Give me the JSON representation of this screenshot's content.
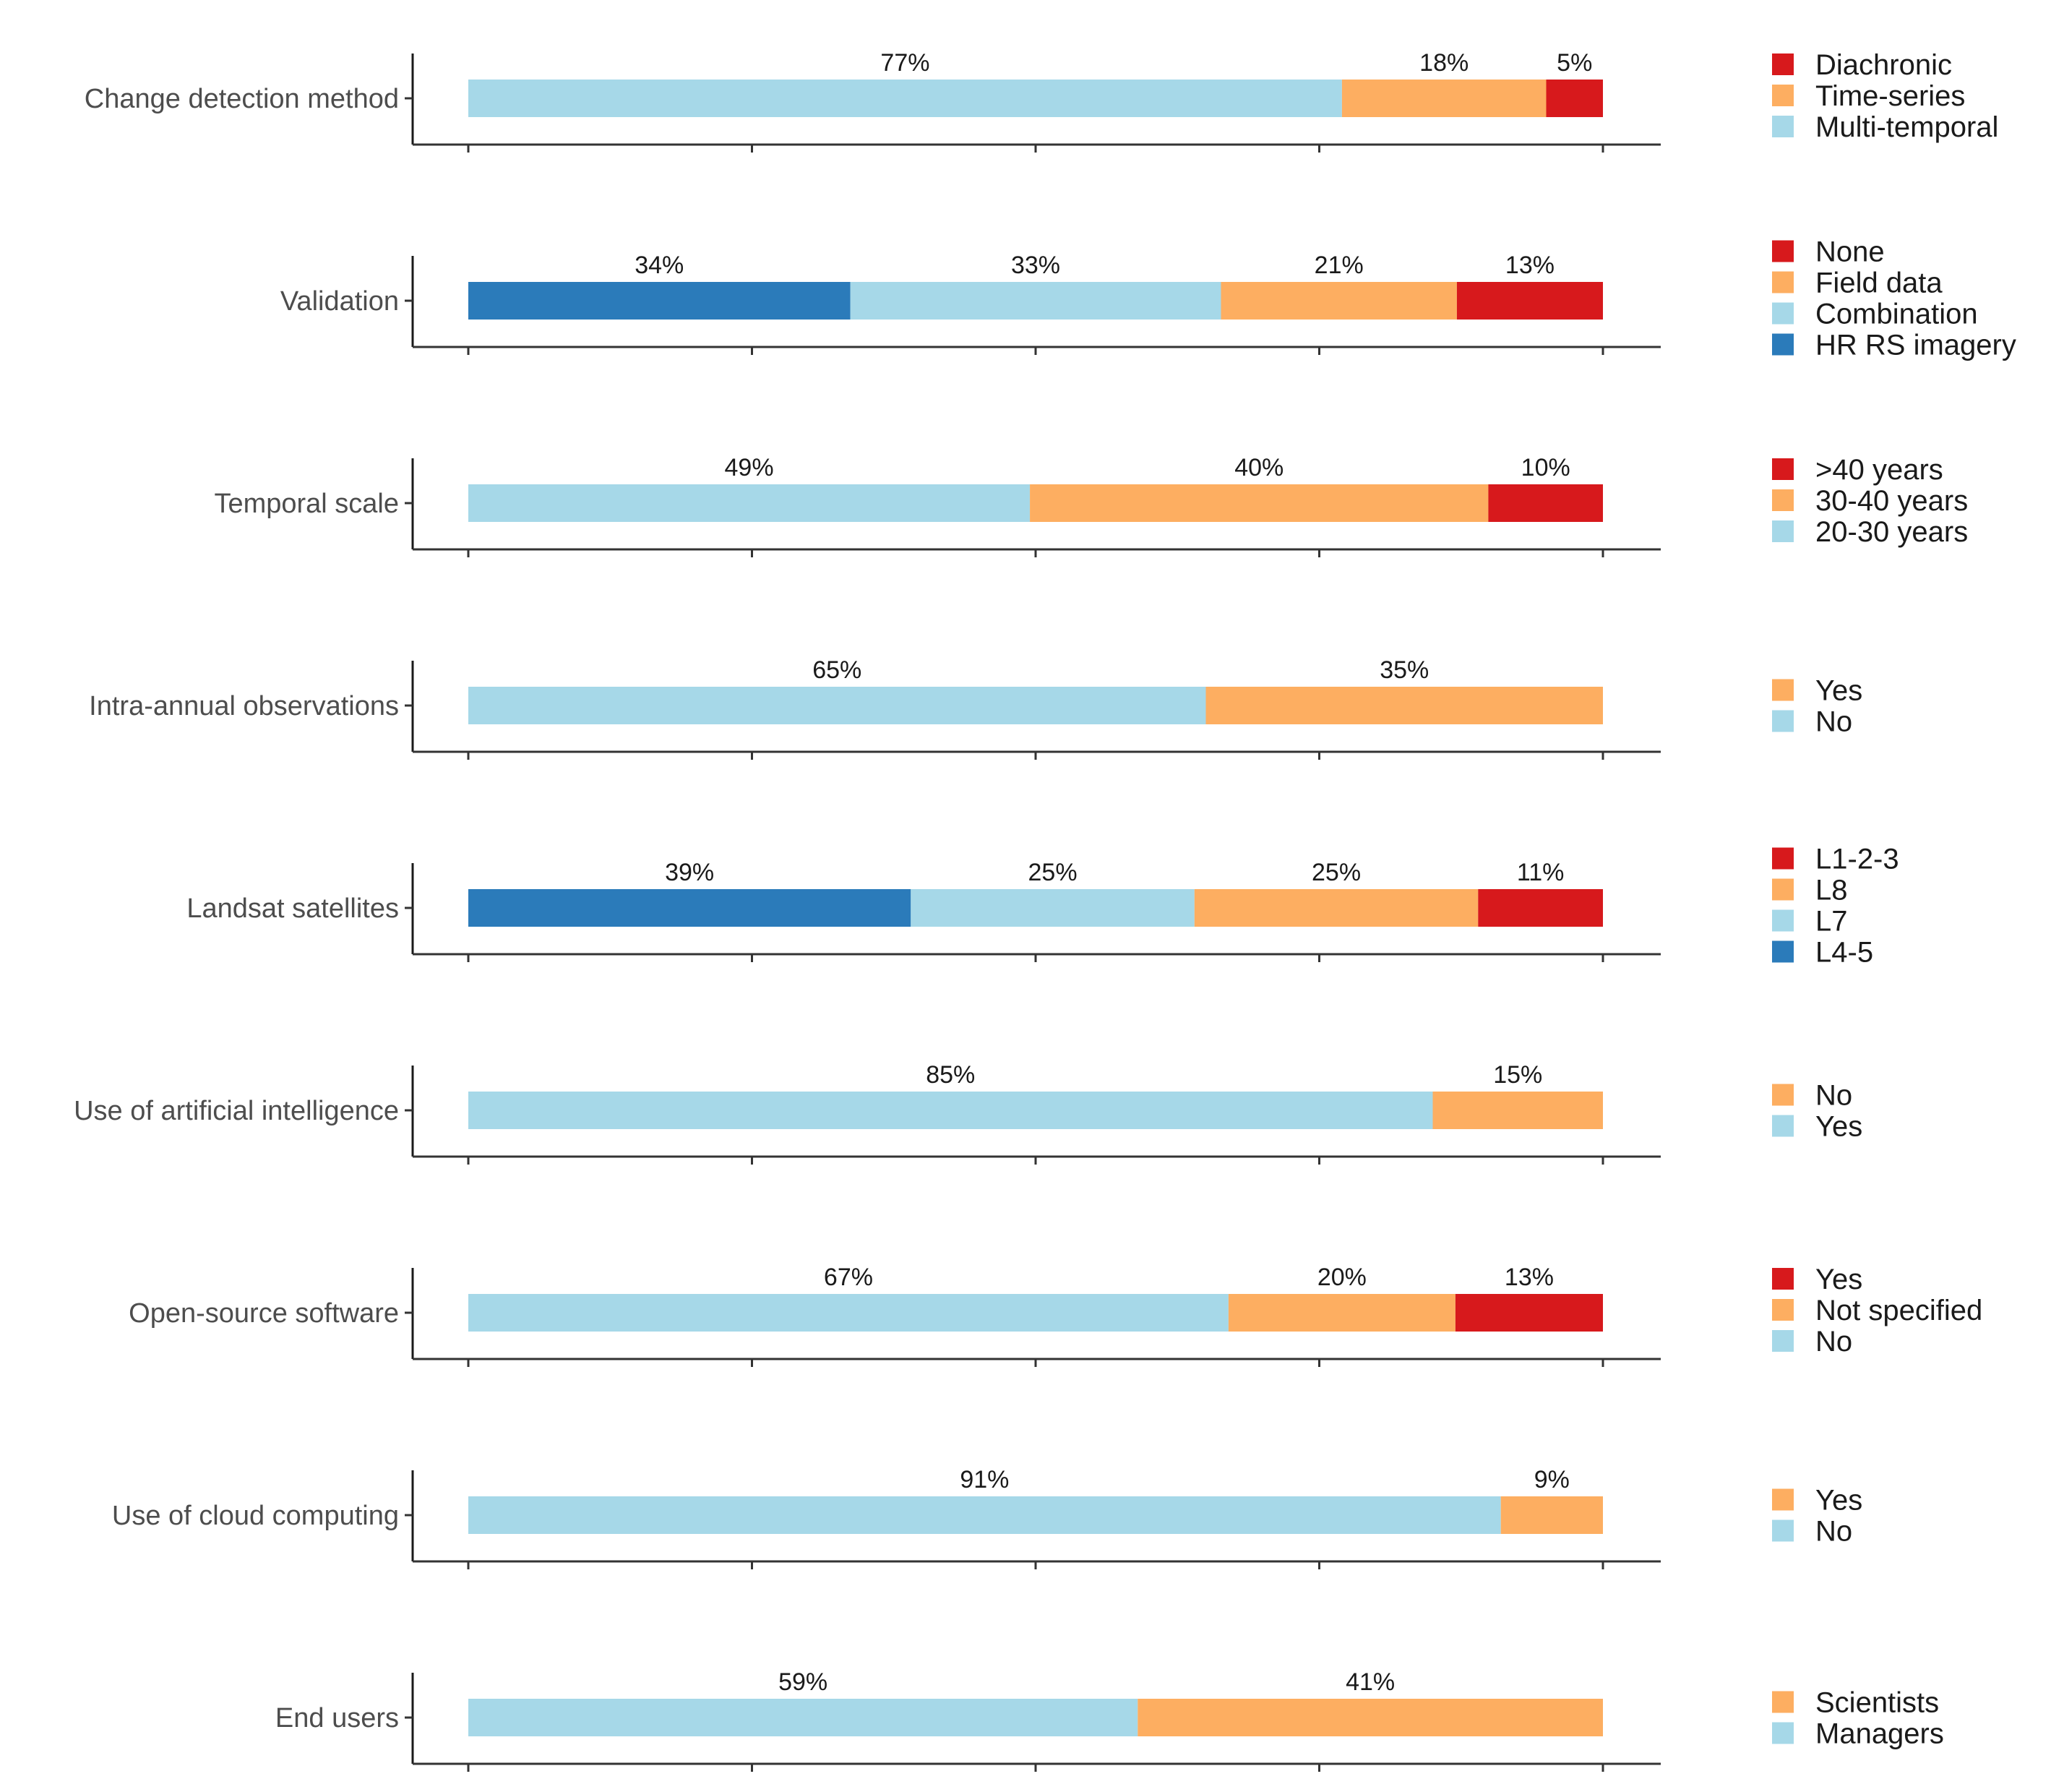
{
  "chart_data": {
    "type": "bar",
    "orientation": "horizontal-stacked",
    "x_range": [
      0,
      100
    ],
    "colors": {
      "dark_blue": "#2b7bba",
      "light_blue": "#a6d8e8",
      "orange": "#fdae61",
      "red": "#d7191c"
    },
    "panels": [
      {
        "category": "Change detection method",
        "segments": [
          {
            "name": "Multi-temporal",
            "value": 77,
            "label": "77%",
            "color": "light_blue"
          },
          {
            "name": "Time-series",
            "value": 18,
            "label": "18%",
            "color": "orange"
          },
          {
            "name": "Diachronic",
            "value": 5,
            "label": "5%",
            "color": "red"
          }
        ],
        "legend": [
          {
            "name": "Diachronic",
            "color": "red"
          },
          {
            "name": "Time-series",
            "color": "orange"
          },
          {
            "name": "Multi-temporal",
            "color": "light_blue"
          }
        ]
      },
      {
        "category": "Validation",
        "segments": [
          {
            "name": "HR RS imagery",
            "value": 34,
            "label": "34%",
            "color": "dark_blue"
          },
          {
            "name": "Combination",
            "value": 33,
            "label": "33%",
            "color": "light_blue"
          },
          {
            "name": "Field data",
            "value": 21,
            "label": "21%",
            "color": "orange"
          },
          {
            "name": "None",
            "value": 13,
            "label": "13%",
            "color": "red"
          }
        ],
        "legend": [
          {
            "name": "None",
            "color": "red"
          },
          {
            "name": "Field data",
            "color": "orange"
          },
          {
            "name": "Combination",
            "color": "light_blue"
          },
          {
            "name": "HR RS imagery",
            "color": "dark_blue"
          }
        ]
      },
      {
        "category": "Temporal scale",
        "segments": [
          {
            "name": "20-30 years",
            "value": 49,
            "label": "49%",
            "color": "light_blue"
          },
          {
            "name": "30-40 years",
            "value": 40,
            "label": "40%",
            "color": "orange"
          },
          {
            "name": ">40 years",
            "value": 10,
            "label": "10%",
            "color": "red"
          }
        ],
        "legend": [
          {
            "name": ">40 years",
            "color": "red"
          },
          {
            "name": "30-40 years",
            "color": "orange"
          },
          {
            "name": "20-30 years",
            "color": "light_blue"
          }
        ]
      },
      {
        "category": "Intra-annual observations",
        "segments": [
          {
            "name": "No",
            "value": 65,
            "label": "65%",
            "color": "light_blue"
          },
          {
            "name": "Yes",
            "value": 35,
            "label": "35%",
            "color": "orange"
          }
        ],
        "legend": [
          {
            "name": "Yes",
            "color": "orange"
          },
          {
            "name": "No",
            "color": "light_blue"
          }
        ]
      },
      {
        "category": "Landsat satellites",
        "segments": [
          {
            "name": "L4-5",
            "value": 39,
            "label": "39%",
            "color": "dark_blue"
          },
          {
            "name": "L7",
            "value": 25,
            "label": "25%",
            "color": "light_blue"
          },
          {
            "name": "L8",
            "value": 25,
            "label": "25%",
            "color": "orange"
          },
          {
            "name": "L1-2-3",
            "value": 11,
            "label": "11%",
            "color": "red"
          }
        ],
        "legend": [
          {
            "name": "L1-2-3",
            "color": "red"
          },
          {
            "name": "L8",
            "color": "orange"
          },
          {
            "name": "L7",
            "color": "light_blue"
          },
          {
            "name": "L4-5",
            "color": "dark_blue"
          }
        ]
      },
      {
        "category": "Use of artificial intelligence",
        "segments": [
          {
            "name": "Yes",
            "value": 85,
            "label": "85%",
            "color": "light_blue"
          },
          {
            "name": "No",
            "value": 15,
            "label": "15%",
            "color": "orange"
          }
        ],
        "legend": [
          {
            "name": "No",
            "color": "orange"
          },
          {
            "name": "Yes",
            "color": "light_blue"
          }
        ]
      },
      {
        "category": "Open-source software",
        "segments": [
          {
            "name": "No",
            "value": 67,
            "label": "67%",
            "color": "light_blue"
          },
          {
            "name": "Not specified",
            "value": 20,
            "label": "20%",
            "color": "orange"
          },
          {
            "name": "Yes",
            "value": 13,
            "label": "13%",
            "color": "red"
          }
        ],
        "legend": [
          {
            "name": "Yes",
            "color": "red"
          },
          {
            "name": "Not specified",
            "color": "orange"
          },
          {
            "name": "No",
            "color": "light_blue"
          }
        ]
      },
      {
        "category": "Use of cloud computing",
        "segments": [
          {
            "name": "No",
            "value": 91,
            "label": "91%",
            "color": "light_blue"
          },
          {
            "name": "Yes",
            "value": 9,
            "label": "9%",
            "color": "orange"
          }
        ],
        "legend": [
          {
            "name": "Yes",
            "color": "orange"
          },
          {
            "name": "No",
            "color": "light_blue"
          }
        ]
      },
      {
        "category": "End users",
        "segments": [
          {
            "name": "Managers",
            "value": 59,
            "label": "59%",
            "color": "light_blue"
          },
          {
            "name": "Scientists",
            "value": 41,
            "label": "41%",
            "color": "orange"
          }
        ],
        "legend": [
          {
            "name": "Scientists",
            "color": "orange"
          },
          {
            "name": "Managers",
            "color": "light_blue"
          }
        ]
      }
    ]
  }
}
